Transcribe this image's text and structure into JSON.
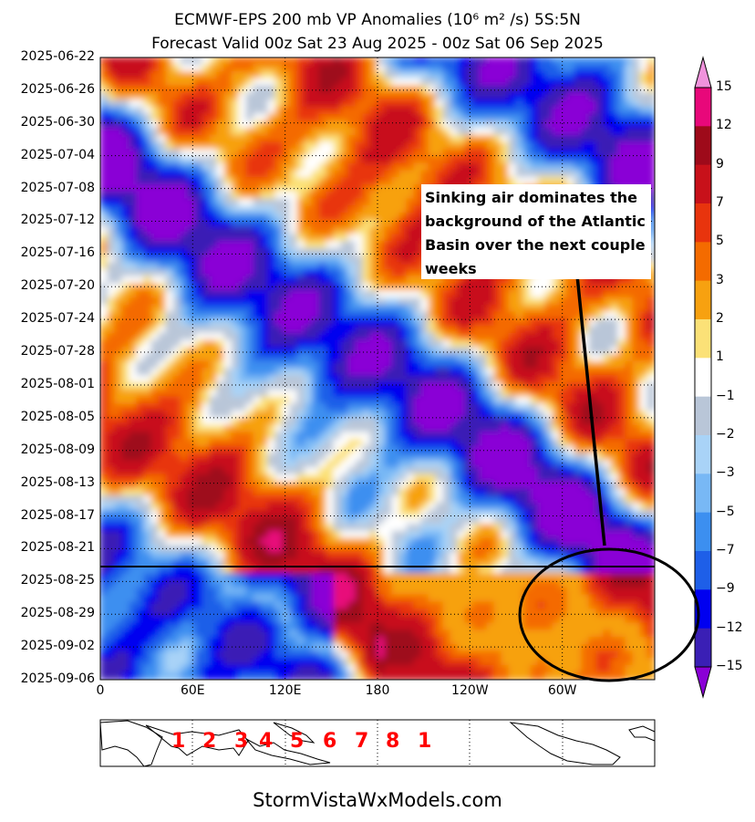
{
  "chart_data": {
    "type": "heatmap",
    "title": "ECMWF-EPS 200 mb VP Anomalies (10⁶ m² /s) 5S:5N",
    "subtitle": "Forecast Valid 00z Sat 23 Aug 2025 - 00z Sat 06 Sep 2025",
    "xlabel": "",
    "ylabel": "",
    "x_ticks": [
      "0",
      "60E",
      "120E",
      "180",
      "120W",
      "60W"
    ],
    "y_ticks": [
      "2025-06-22",
      "2025-06-26",
      "2025-06-30",
      "2025-07-04",
      "2025-07-08",
      "2025-07-12",
      "2025-07-16",
      "2025-07-20",
      "2025-07-24",
      "2025-07-28",
      "2025-08-01",
      "2025-08-05",
      "2025-08-09",
      "2025-08-13",
      "2025-08-17",
      "2025-08-21",
      "2025-08-25",
      "2025-08-29",
      "2025-09-02",
      "2025-09-06"
    ],
    "forecast_start_line": "2025-08-23",
    "grid": true,
    "colorbar": {
      "levels": [
        -15,
        -12,
        -9,
        -7,
        -5,
        -3,
        -2,
        -1,
        1,
        2,
        3,
        5,
        7,
        9,
        12,
        15
      ],
      "labels": [
        "15",
        "12",
        "9",
        "7",
        "5",
        "3",
        "2",
        "1",
        "−1",
        "−2",
        "−3",
        "−5",
        "−7",
        "−9",
        "−12",
        "−15"
      ],
      "colors": [
        "#8a00d6",
        "#3a1fb5",
        "#0000f0",
        "#1e5fe8",
        "#3c8ff0",
        "#78b8f5",
        "#a9d3f7",
        "#b9c6d8",
        "#ffffff",
        "#fbe177",
        "#f7a110",
        "#f46b00",
        "#e8340d",
        "#c8111a",
        "#9e0a1a",
        "#e8087a",
        "#f093dc"
      ]
    },
    "annotation": [
      "Sinking air dominates the",
      "background of the Atlantic",
      "Basin over the next couple",
      "weeks"
    ],
    "mjo_phases": [
      "1",
      "2",
      "3",
      "4",
      "5",
      "6",
      "7",
      "8",
      "1"
    ]
  },
  "footer": "StormVistaWxModels.com"
}
